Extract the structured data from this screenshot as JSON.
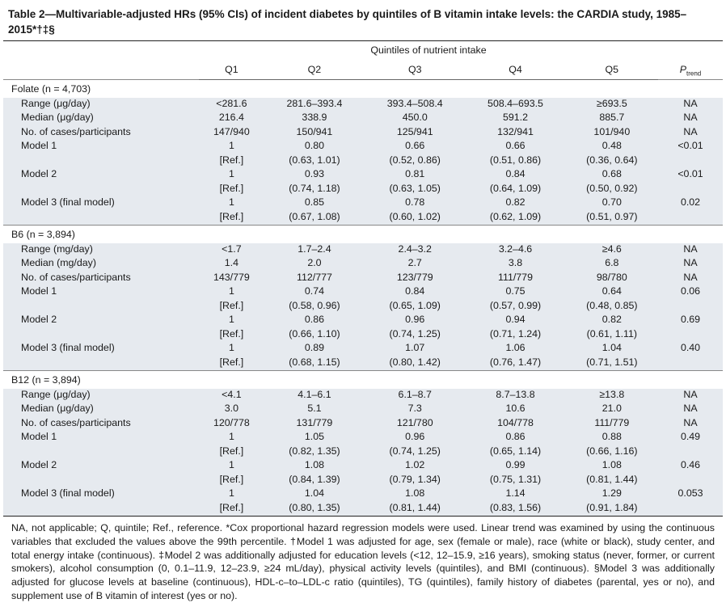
{
  "title": "Table 2—Multivariable-adjusted HRs (95% CIs) of incident diabetes by quintiles of B vitamin intake levels: the CARDIA study, 1985–2015*†‡§",
  "header": {
    "spanner": "Quintiles of nutrient intake",
    "q1": "Q1",
    "q2": "Q2",
    "q3": "Q3",
    "q4": "Q4",
    "q5": "Q5",
    "ptrend_main": "P",
    "ptrend_sub": "trend"
  },
  "folate": {
    "label": "Folate (n = 4,703)",
    "range": {
      "label": "Range (μg/day)",
      "v": [
        "<281.6",
        "281.6–393.4",
        "393.4–508.4",
        "508.4–693.5",
        "≥693.5"
      ],
      "p": "NA"
    },
    "median": {
      "label": "Median (μg/day)",
      "v": [
        "216.4",
        "338.9",
        "450.0",
        "591.2",
        "885.7"
      ],
      "p": "NA"
    },
    "cases": {
      "label": "No. of cases/participants",
      "v": [
        "147/940",
        "150/941",
        "125/941",
        "132/941",
        "101/940"
      ],
      "p": "NA"
    },
    "m1": {
      "label": "Model 1",
      "hr": [
        "1",
        "0.80",
        "0.66",
        "0.66",
        "0.48"
      ],
      "ci": [
        "[Ref.]",
        "(0.63, 1.01)",
        "(0.52, 0.86)",
        "(0.51, 0.86)",
        "(0.36, 0.64)"
      ],
      "p": "<0.01"
    },
    "m2": {
      "label": "Model 2",
      "hr": [
        "1",
        "0.93",
        "0.81",
        "0.84",
        "0.68"
      ],
      "ci": [
        "[Ref.]",
        "(0.74, 1.18)",
        "(0.63, 1.05)",
        "(0.64, 1.09)",
        "(0.50, 0.92)"
      ],
      "p": "<0.01"
    },
    "m3": {
      "label": "Model 3 (final model)",
      "hr": [
        "1",
        "0.85",
        "0.78",
        "0.82",
        "0.70"
      ],
      "ci": [
        "[Ref.]",
        "(0.67, 1.08)",
        "(0.60, 1.02)",
        "(0.62, 1.09)",
        "(0.51, 0.97)"
      ],
      "p": "0.02"
    }
  },
  "b6": {
    "label": "B6 (n = 3,894)",
    "range": {
      "label": "Range (mg/day)",
      "v": [
        "<1.7",
        "1.7–2.4",
        "2.4–3.2",
        "3.2–4.6",
        "≥4.6"
      ],
      "p": "NA"
    },
    "median": {
      "label": "Median (mg/day)",
      "v": [
        "1.4",
        "2.0",
        "2.7",
        "3.8",
        "6.8"
      ],
      "p": "NA"
    },
    "cases": {
      "label": "No. of cases/participants",
      "v": [
        "143/779",
        "112/777",
        "123/779",
        "111/779",
        "98/780"
      ],
      "p": "NA"
    },
    "m1": {
      "label": "Model 1",
      "hr": [
        "1",
        "0.74",
        "0.84",
        "0.75",
        "0.64"
      ],
      "ci": [
        "[Ref.]",
        "(0.58, 0.96)",
        "(0.65, 1.09)",
        "(0.57, 0.99)",
        "(0.48, 0.85)"
      ],
      "p": "0.06"
    },
    "m2": {
      "label": "Model 2",
      "hr": [
        "1",
        "0.86",
        "0.96",
        "0.94",
        "0.82"
      ],
      "ci": [
        "[Ref.]",
        "(0.66, 1.10)",
        "(0.74, 1.25)",
        "(0.71, 1.24)",
        "(0.61, 1.11)"
      ],
      "p": "0.69"
    },
    "m3": {
      "label": "Model 3 (final model)",
      "hr": [
        "1",
        "0.89",
        "1.07",
        "1.06",
        "1.04"
      ],
      "ci": [
        "[Ref.]",
        "(0.68, 1.15)",
        "(0.80, 1.42)",
        "(0.76, 1.47)",
        "(0.71, 1.51)"
      ],
      "p": "0.40"
    }
  },
  "b12": {
    "label": "B12 (n = 3,894)",
    "range": {
      "label": "Range (μg/day)",
      "v": [
        "<4.1",
        "4.1–6.1",
        "6.1–8.7",
        "8.7–13.8",
        "≥13.8"
      ],
      "p": "NA"
    },
    "median": {
      "label": "Median (μg/day)",
      "v": [
        "3.0",
        "5.1",
        "7.3",
        "10.6",
        "21.0"
      ],
      "p": "NA"
    },
    "cases": {
      "label": "No. of cases/participants",
      "v": [
        "120/778",
        "131/779",
        "121/780",
        "104/778",
        "111/779"
      ],
      "p": "NA"
    },
    "m1": {
      "label": "Model 1",
      "hr": [
        "1",
        "1.05",
        "0.96",
        "0.86",
        "0.88"
      ],
      "ci": [
        "[Ref.]",
        "(0.82, 1.35)",
        "(0.74, 1.25)",
        "(0.65, 1.14)",
        "(0.66, 1.16)"
      ],
      "p": "0.49"
    },
    "m2": {
      "label": "Model 2",
      "hr": [
        "1",
        "1.08",
        "1.02",
        "0.99",
        "1.08"
      ],
      "ci": [
        "[Ref.]",
        "(0.84, 1.39)",
        "(0.79, 1.34)",
        "(0.75, 1.31)",
        "(0.81, 1.44)"
      ],
      "p": "0.46"
    },
    "m3": {
      "label": "Model 3 (final model)",
      "hr": [
        "1",
        "1.04",
        "1.08",
        "1.14",
        "1.29"
      ],
      "ci": [
        "[Ref.]",
        "(0.80, 1.35)",
        "(0.81, 1.44)",
        "(0.83, 1.56)",
        "(0.91, 1.84)"
      ],
      "p": "0.053"
    }
  },
  "footnote": "NA, not applicable; Q, quintile; Ref., reference. *Cox proportional hazard regression models were used. Linear trend was examined by using the continuous variables that excluded the values above the 99th percentile. †Model 1 was adjusted for age, sex (female or male), race (white or black), study center, and total energy intake (continuous). ‡Model 2 was additionally adjusted for education levels (<12, 12–15.9, ≥16 years), smoking status (never, former, or current smokers), alcohol consumption (0, 0.1–11.9, 12–23.9, ≥24 mL/day), physical activity levels (quintiles), and BMI (continuous). §Model 3 was additionally adjusted for glucose levels at baseline (continuous), HDL-c–to–LDL-c ratio (quintiles), TG (quintiles), family history of diabetes (parental, yes or no), and supplement use of B vitamin of interest (yes or no)."
}
